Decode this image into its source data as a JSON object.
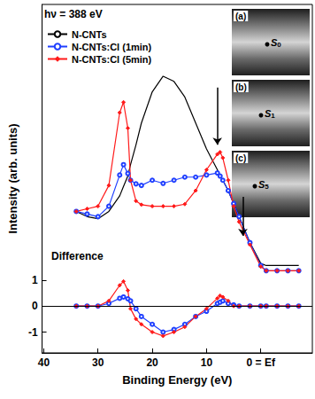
{
  "chart_data": {
    "type": "line",
    "title": "hν = 388 eV",
    "x_label": "Binding Energy (eV)",
    "y_label": "Intensity (arb. units)",
    "x": [
      34,
      32,
      30,
      28,
      26,
      25.3,
      24.5,
      24,
      23,
      22,
      20,
      18,
      16,
      14,
      12,
      10,
      8,
      7.5,
      7,
      6,
      5,
      4,
      2,
      0,
      -1,
      -3,
      -5,
      -7
    ],
    "series": [
      {
        "name": "N-CNTs",
        "color": "#000000",
        "marker": "none",
        "values": [
          3.64,
          3.44,
          3.36,
          3.64,
          4.24,
          4.6,
          5.0,
          5.44,
          6.2,
          7.04,
          8.24,
          8.84,
          8.64,
          8.04,
          7.04,
          6.04,
          5.24,
          5.0,
          4.84,
          4.44,
          3.94,
          3.44,
          2.44,
          1.64,
          1.56,
          1.56,
          1.56,
          1.56
        ]
      },
      {
        "name": "N-CNTs:Cl (1min)",
        "color": "#1f3fff",
        "marker": "circle",
        "values": [
          3.64,
          3.54,
          3.44,
          3.84,
          5.04,
          5.44,
          5.1,
          4.84,
          4.7,
          4.64,
          4.84,
          4.72,
          4.84,
          4.96,
          4.96,
          5.04,
          5.12,
          5.0,
          4.84,
          4.44,
          3.94,
          3.44,
          2.44,
          1.56,
          1.36,
          1.36,
          1.36,
          1.36
        ]
      },
      {
        "name": "N-CNTs:Cl (5min)",
        "color": "#ff1a1a",
        "marker": "diamond",
        "values": [
          3.64,
          3.74,
          3.84,
          4.64,
          7.44,
          7.84,
          6.84,
          4.84,
          4.04,
          3.9,
          3.84,
          3.84,
          3.84,
          3.92,
          4.44,
          5.24,
          5.84,
          5.92,
          5.7,
          4.84,
          3.84,
          3.24,
          2.36,
          1.52,
          1.36,
          1.36,
          1.36,
          1.36
        ]
      }
    ],
    "difference": {
      "label": "Difference",
      "series": [
        {
          "color": "#1f3fff",
          "marker": "circle",
          "values": [
            0,
            0,
            0,
            0.1,
            0.3,
            0.35,
            0.28,
            0.2,
            -0.1,
            -0.4,
            -0.7,
            -1.0,
            -0.9,
            -0.7,
            -0.4,
            -0.2,
            0.1,
            0.15,
            0.2,
            0.1,
            0.05,
            0,
            0,
            0,
            0,
            0,
            0,
            0
          ]
        },
        {
          "color": "#ff1a1a",
          "marker": "diamond",
          "values": [
            0,
            0,
            0,
            0.2,
            0.8,
            0.95,
            0.6,
            -0.1,
            -0.5,
            -0.7,
            -1.0,
            -1.15,
            -1.0,
            -0.8,
            -0.4,
            -0.1,
            0.3,
            0.4,
            0.35,
            0.2,
            0,
            0,
            0,
            0,
            0,
            0,
            0,
            0
          ]
        }
      ]
    },
    "arrows": [
      {
        "x": 8,
        "from": 8.4,
        "to": 6.2
      },
      {
        "x": 3.3,
        "from": 4.2,
        "to": 2.7
      }
    ],
    "insets": [
      {
        "label": "(a)",
        "point": "S0"
      },
      {
        "label": "(b)",
        "point": "S1"
      },
      {
        "label": "(c)",
        "point": "S5"
      }
    ],
    "xlim": [
      40.3,
      -9.5
    ],
    "xticks": [
      40,
      30,
      20,
      10,
      {
        "value": 0,
        "label": "0 = Ef"
      }
    ],
    "ylim": [
      -1.8,
      11.6
    ],
    "yticks": [
      -1,
      0,
      1
    ],
    "grid": false,
    "legend": "upper left"
  }
}
